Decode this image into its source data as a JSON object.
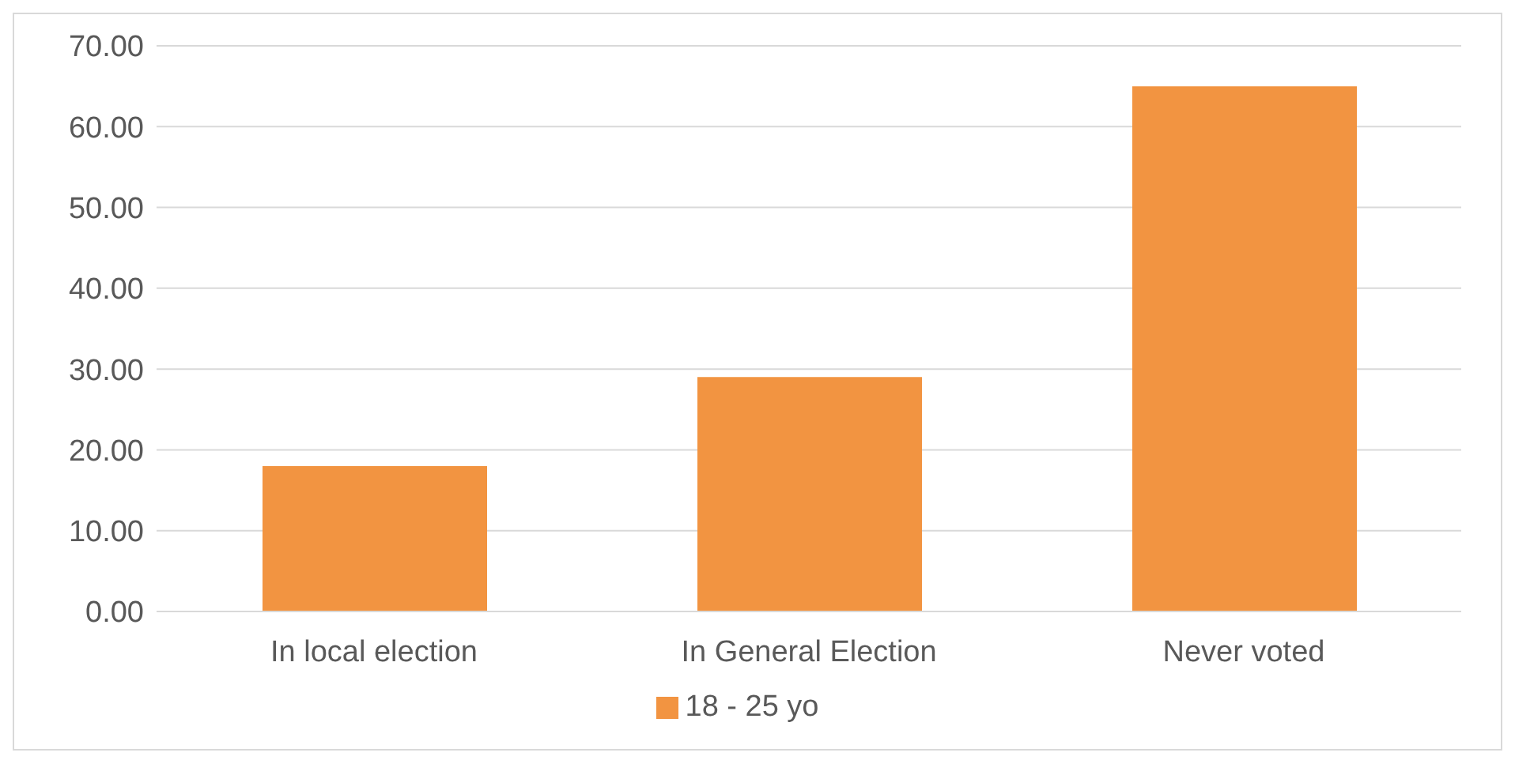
{
  "chart_data": {
    "type": "bar",
    "categories": [
      "In local election",
      "In General Election",
      "Never voted"
    ],
    "series": [
      {
        "name": "18 - 25 yo",
        "color": "#f29441",
        "values": [
          18,
          29,
          65
        ]
      }
    ],
    "ylim": [
      0,
      70
    ],
    "yticks": [
      {
        "value": 0,
        "label": "0.00"
      },
      {
        "value": 10,
        "label": "10.00"
      },
      {
        "value": 20,
        "label": "20.00"
      },
      {
        "value": 30,
        "label": "30.00"
      },
      {
        "value": 40,
        "label": "40.00"
      },
      {
        "value": 50,
        "label": "50.00"
      },
      {
        "value": 60,
        "label": "60.00"
      },
      {
        "value": 70,
        "label": "70.00"
      }
    ],
    "grid": "y",
    "legend": "bottom"
  }
}
